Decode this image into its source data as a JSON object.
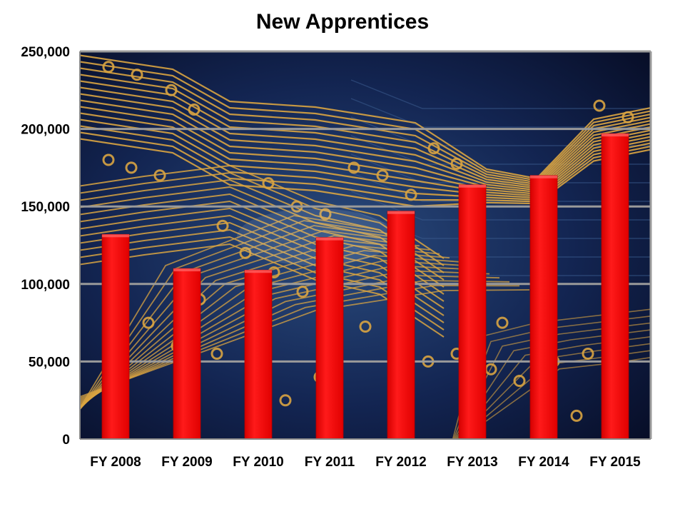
{
  "chart_data": {
    "type": "bar",
    "title": "New Apprentices",
    "categories": [
      "FY 2008",
      "FY 2009",
      "FY 2010",
      "FY 2011",
      "FY 2012",
      "FY 2013",
      "FY 2014",
      "FY 2015"
    ],
    "values": [
      132000,
      110000,
      109000,
      130000,
      147000,
      164000,
      170000,
      197000
    ],
    "ylim": [
      0,
      250000
    ],
    "yticks": [
      0,
      50000,
      100000,
      150000,
      200000,
      250000
    ],
    "ytick_labels": [
      "0",
      "50,000",
      "100,000",
      "150,000",
      "200,000",
      "250,000"
    ],
    "grid": true,
    "legend": "none",
    "colors": {
      "bar": "#ff0000",
      "plot_background": "#0b1230",
      "circuit_trace": "#d9a441",
      "gridline": "#9a9a9a"
    }
  }
}
